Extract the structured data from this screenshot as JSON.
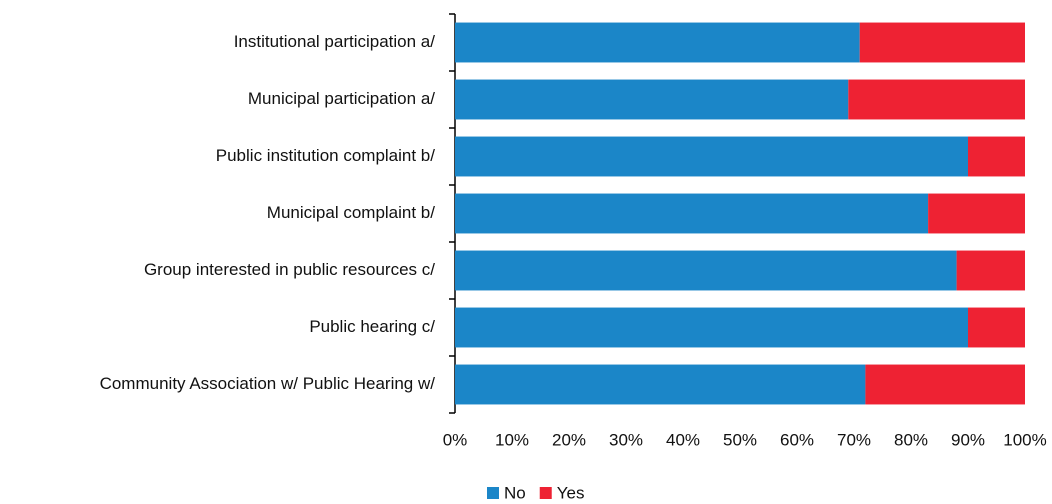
{
  "chart_data": {
    "type": "stacked_bar",
    "orientation": "horizontal",
    "categories": [
      "Institutional participation a/",
      "Municipal participation a/",
      "Public institution complaint b/",
      "Municipal complaint b/",
      "Group interested in public resources c/",
      "Public hearing c/",
      "Community Association w/ Public Hearing w/"
    ],
    "series": [
      {
        "name": "No",
        "color": "#1b86c8",
        "values": [
          71,
          69,
          90,
          83,
          88,
          90,
          72
        ]
      },
      {
        "name": "Yes",
        "color": "#ee2233",
        "values": [
          29,
          31,
          10,
          17,
          12,
          10,
          28
        ]
      }
    ],
    "xlim": [
      0,
      100
    ],
    "xticks": [
      {
        "value": 0,
        "label": "0%"
      },
      {
        "value": 10,
        "label": "10%"
      },
      {
        "value": 20,
        "label": "20%"
      },
      {
        "value": 30,
        "label": "30%"
      },
      {
        "value": 40,
        "label": "40%"
      },
      {
        "value": 50,
        "label": "50%"
      },
      {
        "value": 60,
        "label": "60%"
      },
      {
        "value": 70,
        "label": "70%"
      },
      {
        "value": 80,
        "label": "80%"
      },
      {
        "value": 90,
        "label": "90%"
      },
      {
        "value": 100,
        "label": "100%"
      }
    ],
    "grid": false,
    "legend": "bottom"
  }
}
